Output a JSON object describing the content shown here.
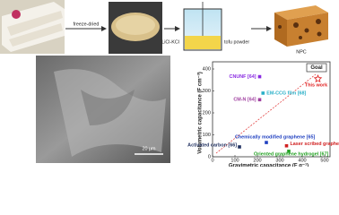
{
  "diagram": {
    "step1": "freeze-dried",
    "salt": "LiCl-KCl",
    "step2": "tofu powder",
    "product": "NPC",
    "scale_bar": "20 μm"
  },
  "chart_data": {
    "type": "scatter",
    "badge": "Goal",
    "x_label": "Gravimetric capacitance (F g⁻¹)",
    "y_label": "Volumetric capacitance (F cm⁻³)",
    "xlim": [
      0,
      500
    ],
    "ylim": [
      0,
      400
    ],
    "xticks": [
      0,
      100,
      200,
      300,
      400,
      500
    ],
    "yticks": [
      0,
      100,
      200,
      300,
      400
    ],
    "series": [
      {
        "name": "This work",
        "color": "#e02020",
        "marker": "star",
        "x": [
          470
        ],
        "values": [
          355
        ]
      },
      {
        "name": "CNUNF [64]",
        "color": "#8a2be2",
        "marker": "square",
        "x": [
          210
        ],
        "values": [
          365
        ]
      },
      {
        "name": "EM-CCG film [68]",
        "color": "#2ab0c8",
        "marker": "square",
        "x": [
          225
        ],
        "values": [
          290
        ]
      },
      {
        "name": "CM-N [64]",
        "color": "#a040a0",
        "marker": "square",
        "x": [
          210
        ],
        "values": [
          260
        ]
      },
      {
        "name": "Chemically modified graphene [65]",
        "color": "#2040c0",
        "marker": "square",
        "x": [
          240
        ],
        "values": [
          65
        ]
      },
      {
        "name": "Laser scribed graphene [69]",
        "color": "#d02020",
        "marker": "square",
        "x": [
          330
        ],
        "values": [
          50
        ]
      },
      {
        "name": "Activated carbon [66]",
        "color": "#203060",
        "marker": "square",
        "x": [
          120
        ],
        "values": [
          45
        ]
      },
      {
        "name": "Oriented graphene hydrogel [67]",
        "color": "#20a020",
        "marker": "square",
        "x": [
          340
        ],
        "values": [
          25
        ]
      }
    ]
  }
}
